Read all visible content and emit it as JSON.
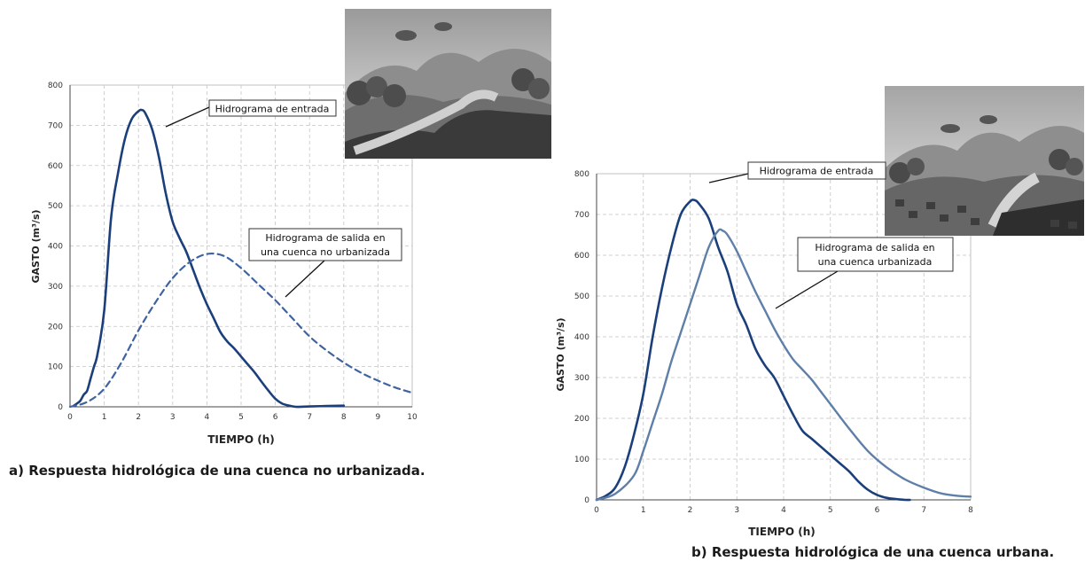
{
  "captions": {
    "a": "a) Respuesta hidrológica de una cuenca no urbanizada.",
    "b": "b) Respuesta hidrológica de una cuenca urbana."
  },
  "colors": {
    "inflow": "#1b3f7a",
    "outflow_a": "#3f63a0",
    "outflow_b": "#5e7fa8",
    "grid": "#c4c4c4"
  },
  "chart_data": [
    {
      "type": "line",
      "title": "",
      "xlabel": "TIEMPO (h)",
      "ylabel": "GASTO (m³/s)",
      "xlim": [
        0,
        10
      ],
      "ylim": [
        0,
        800
      ],
      "xticks": [
        "0",
        "1",
        "2",
        "3",
        "4",
        "5",
        "6",
        "7",
        "8",
        "9",
        "10"
      ],
      "yticks": [
        "0",
        "100",
        "200",
        "300",
        "400",
        "500",
        "600",
        "700",
        "800"
      ],
      "grid": true,
      "series": [
        {
          "name": "Hidrograma de entrada",
          "style": "solid",
          "x": [
            0.1,
            0.2,
            0.3,
            0.4,
            0.5,
            0.6,
            0.7,
            0.8,
            1.0,
            1.2,
            1.4,
            1.6,
            1.8,
            2.0,
            2.1,
            2.2,
            2.4,
            2.6,
            2.8,
            3.0,
            3.2,
            3.4,
            3.6,
            3.8,
            4.0,
            4.2,
            4.4,
            4.6,
            4.8,
            5.0,
            5.2,
            5.4,
            5.6,
            5.8,
            6.0,
            6.2,
            6.4,
            6.6,
            7.0,
            7.5,
            8.0
          ],
          "y": [
            2,
            8,
            15,
            30,
            40,
            70,
            100,
            130,
            240,
            470,
            580,
            665,
            715,
            735,
            738,
            730,
            690,
            620,
            530,
            460,
            420,
            385,
            340,
            295,
            255,
            220,
            185,
            162,
            145,
            125,
            105,
            85,
            62,
            40,
            20,
            8,
            3,
            0,
            1,
            2,
            3
          ]
        },
        {
          "name": "Hidrograma de salida en una cuenca no urbanizada",
          "style": "dashed",
          "x": [
            0,
            0.5,
            1.0,
            1.5,
            2.0,
            2.5,
            3.0,
            3.5,
            4.0,
            4.5,
            5.0,
            5.5,
            6.0,
            6.5,
            7.0,
            7.5,
            8.0,
            8.5,
            9.0,
            9.5,
            10.0
          ],
          "y": [
            0,
            12,
            45,
            110,
            190,
            260,
            320,
            360,
            380,
            375,
            345,
            305,
            265,
            220,
            175,
            140,
            110,
            85,
            65,
            48,
            35
          ]
        }
      ],
      "annotations": [
        "Hidrograma de entrada",
        "Hidrograma de salida en",
        "una cuenca no urbanizada"
      ]
    },
    {
      "type": "line",
      "title": "",
      "xlabel": "TIEMPO (h)",
      "ylabel": "GASTO (m³/s)",
      "xlim": [
        0,
        8
      ],
      "ylim": [
        0,
        800
      ],
      "xticks": [
        "0",
        "1",
        "2",
        "3",
        "4",
        "5",
        "6",
        "7",
        "8"
      ],
      "yticks": [
        "0",
        "100",
        "200",
        "300",
        "400",
        "500",
        "600",
        "700",
        "800"
      ],
      "grid": true,
      "series": [
        {
          "name": "Hidrograma de entrada",
          "style": "solid",
          "x": [
            0,
            0.2,
            0.4,
            0.6,
            0.8,
            1.0,
            1.2,
            1.4,
            1.6,
            1.8,
            2.0,
            2.1,
            2.2,
            2.4,
            2.6,
            2.8,
            3.0,
            3.2,
            3.4,
            3.6,
            3.8,
            4.0,
            4.2,
            4.4,
            4.6,
            4.8,
            5.0,
            5.2,
            5.4,
            5.6,
            5.8,
            6.0,
            6.2,
            6.4,
            6.6,
            6.7
          ],
          "y": [
            0,
            10,
            30,
            80,
            160,
            260,
            400,
            520,
            620,
            700,
            732,
            735,
            725,
            690,
            620,
            560,
            480,
            430,
            370,
            330,
            300,
            255,
            210,
            170,
            150,
            130,
            110,
            90,
            70,
            45,
            25,
            12,
            5,
            2,
            0,
            0
          ]
        },
        {
          "name": "Hidrograma de salida en una cuenca urbanizada",
          "style": "solid",
          "x": [
            0,
            0.4,
            0.8,
            1.0,
            1.2,
            1.4,
            1.6,
            1.8,
            2.0,
            2.2,
            2.4,
            2.6,
            2.7,
            2.8,
            3.0,
            3.2,
            3.4,
            3.6,
            3.8,
            4.0,
            4.2,
            4.4,
            4.6,
            4.8,
            5.0,
            5.4,
            5.8,
            6.2,
            6.6,
            7.0,
            7.4,
            7.8,
            8.0
          ],
          "y": [
            0,
            15,
            60,
            120,
            190,
            260,
            340,
            410,
            480,
            550,
            620,
            660,
            660,
            650,
            610,
            560,
            510,
            465,
            420,
            380,
            345,
            320,
            295,
            265,
            235,
            175,
            120,
            80,
            50,
            30,
            15,
            9,
            8
          ]
        }
      ],
      "annotations": [
        "Hidrograma de entrada",
        "Hidrograma de salida en",
        "una cuenca urbanizada"
      ]
    }
  ]
}
